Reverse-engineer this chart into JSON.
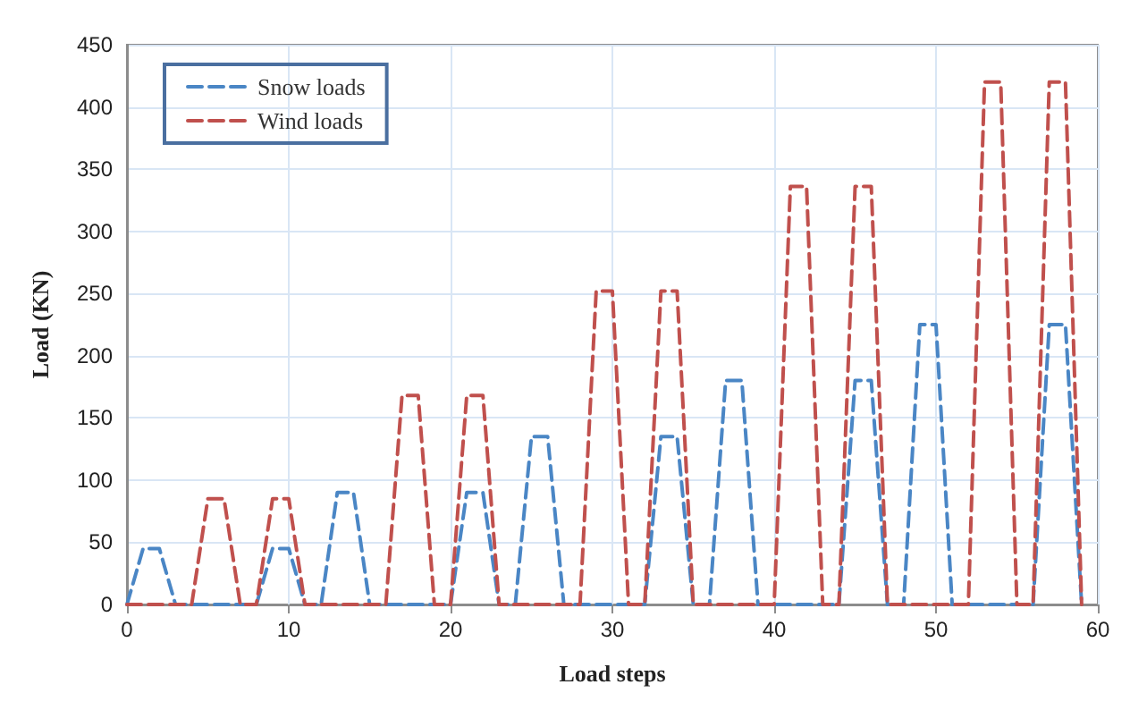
{
  "chart_data": {
    "type": "line",
    "xlabel": "Load steps",
    "ylabel": "Load (KN)",
    "x": [
      0,
      1,
      2,
      3,
      4,
      5,
      6,
      7,
      8,
      9,
      10,
      11,
      12,
      13,
      14,
      15,
      16,
      17,
      18,
      19,
      20,
      21,
      22,
      23,
      24,
      25,
      26,
      27,
      28,
      29,
      30,
      31,
      32,
      33,
      34,
      35,
      36,
      37,
      38,
      39,
      40,
      41,
      42,
      43,
      44,
      45,
      46,
      47,
      48,
      49,
      50,
      51,
      52,
      53,
      54,
      55,
      56,
      57,
      58,
      59
    ],
    "series": [
      {
        "name": "Snow loads",
        "color": "#4a86c5",
        "values": [
          0,
          45,
          45,
          0,
          0,
          0,
          0,
          0,
          0,
          45,
          45,
          0,
          0,
          90,
          90,
          0,
          0,
          0,
          0,
          0,
          0,
          90,
          90,
          0,
          0,
          135,
          135,
          0,
          0,
          0,
          0,
          0,
          0,
          135,
          135,
          0,
          0,
          180,
          180,
          0,
          0,
          0,
          0,
          0,
          0,
          180,
          180,
          0,
          0,
          225,
          225,
          0,
          0,
          0,
          0,
          0,
          0,
          225,
          225,
          0
        ]
      },
      {
        "name": "Wind loads",
        "color": "#c0504d",
        "values": [
          0,
          0,
          0,
          0,
          0,
          85,
          85,
          0,
          0,
          85,
          85,
          0,
          0,
          0,
          0,
          0,
          0,
          168,
          168,
          0,
          0,
          168,
          168,
          0,
          0,
          0,
          0,
          0,
          0,
          252,
          252,
          0,
          0,
          252,
          252,
          0,
          0,
          0,
          0,
          0,
          0,
          336,
          336,
          0,
          0,
          336,
          336,
          0,
          0,
          0,
          0,
          0,
          0,
          420,
          420,
          0,
          0,
          420,
          420,
          0
        ]
      }
    ],
    "xlim": [
      0,
      60
    ],
    "xticks": [
      0,
      10,
      20,
      30,
      40,
      50,
      60
    ],
    "ylim": [
      0,
      450
    ],
    "yticks": [
      0,
      50,
      100,
      150,
      200,
      250,
      300,
      350,
      400,
      450
    ],
    "grid": true,
    "legend": "top left",
    "line_style": "dashed",
    "marker": "none"
  }
}
